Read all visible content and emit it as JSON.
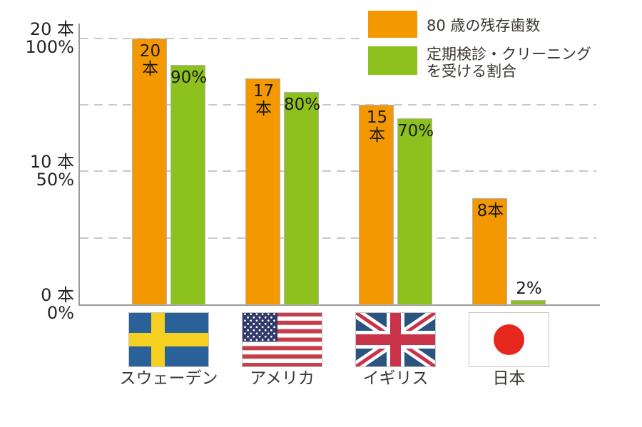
{
  "page": {
    "background": "#FFFFFF"
  },
  "legend": {
    "teeth": {
      "label": "80 歳の残存歯数",
      "color": "#F39800"
    },
    "checkup": {
      "label_line1": "定期検診・クリーニング",
      "label_line2": "を受ける割合",
      "color": "#8DC21E"
    }
  },
  "y_axis": {
    "ticks": [
      {
        "line1": "20 本",
        "line2": "100%"
      },
      {
        "line1": "10 本",
        "line2": "50%"
      },
      {
        "line1": "0 本",
        "line2": "0%"
      }
    ]
  },
  "chart_data": {
    "type": "bar",
    "title": "",
    "categories": [
      "スウェーデン",
      "アメリカ",
      "イギリス",
      "日本"
    ],
    "category_ids": [
      "sweden",
      "usa",
      "uk",
      "japan"
    ],
    "series": [
      {
        "name": "80 歳の残存歯数",
        "unit": "本",
        "color": "#F39800",
        "values": [
          20,
          17,
          15,
          8
        ],
        "labels": [
          "20本",
          "17本",
          "15本",
          "8本"
        ],
        "axis_max": 20
      },
      {
        "name": "定期検診・クリーニングを受ける割合",
        "unit": "%",
        "color": "#8DC21E",
        "values": [
          90,
          80,
          70,
          2
        ],
        "labels": [
          "90%",
          "80%",
          "70%",
          "2%"
        ],
        "axis_max": 100
      }
    ],
    "ylim_percent": [
      0,
      100
    ],
    "ylim_teeth": [
      0,
      20
    ],
    "gridlines_percent": [
      25,
      50,
      75,
      100
    ],
    "grid_style": "dashed",
    "legend_position": "top-right"
  },
  "flags": {
    "sweden": {
      "blue": "#2A6198",
      "yellow": "#F6D021"
    },
    "usa": {
      "navy": "#303A68",
      "red": "#C63D49",
      "white": "#FFFFFF"
    },
    "uk": {
      "blue": "#2B5380",
      "red": "#C9334A",
      "white": "#FFFFFF"
    },
    "japan": {
      "red": "#E5271D",
      "white": "#FFFFFF"
    }
  },
  "colors": {
    "axis": "#9A9A9A",
    "gridline": "#C9C9C9",
    "bar_border": "#B3B3B3",
    "text": "#262220"
  }
}
